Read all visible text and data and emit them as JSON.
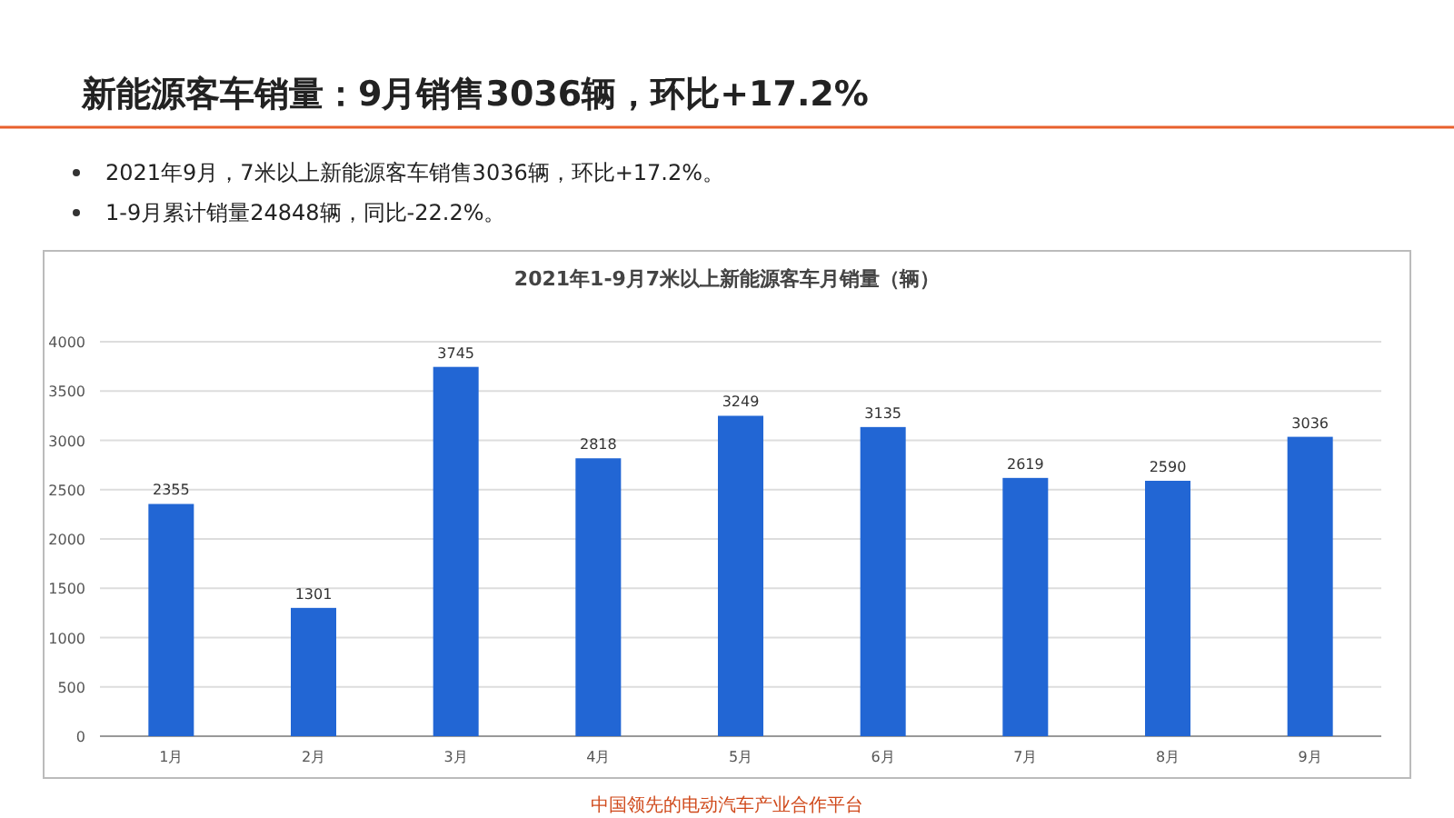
{
  "chart_data": {
    "type": "bar",
    "title": "新能源客车销量：9月销售3036辆，环比+17.2%",
    "subtitle": "2021年1-9月7米以上新能源客车月销量（辆）",
    "annotations": [
      "2021年9月，7米以上新能源客车销售3036辆，环比+17.2%。",
      "1-9月累计销量24848辆，同比-22.2%。",
      "中国领先的电动汽车产业合作平台"
    ],
    "categories": [
      "1月",
      "2月",
      "3月",
      "4月",
      "5月",
      "6月",
      "7月",
      "8月",
      "9月"
    ],
    "values": [
      2355,
      1301,
      3745,
      2818,
      3249,
      3135,
      2619,
      2590,
      3036
    ],
    "color": "#2266d4",
    "ylim": [
      0,
      4000
    ],
    "yticks": [
      0,
      500,
      1000,
      1500,
      2000,
      2500,
      3000,
      3500,
      4000
    ],
    "grid": "y",
    "data_labels": true
  }
}
